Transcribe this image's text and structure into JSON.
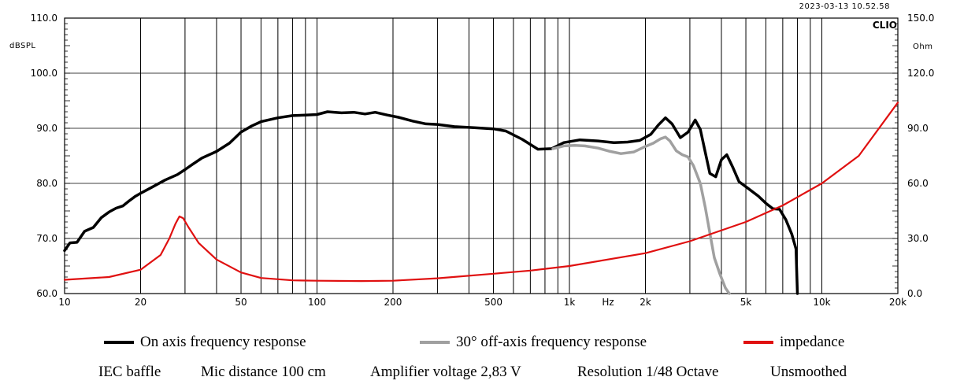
{
  "header": {
    "timestamp": "2023-03-13 10.52.58",
    "brand": "CLIO"
  },
  "chart_data": {
    "type": "line",
    "x_scale": "log",
    "xlim": [
      10,
      20000
    ],
    "x_ticks": [
      {
        "v": 10,
        "label": "10"
      },
      {
        "v": 20,
        "label": "20"
      },
      {
        "v": 50,
        "label": "50"
      },
      {
        "v": 100,
        "label": "100"
      },
      {
        "v": 200,
        "label": "200"
      },
      {
        "v": 500,
        "label": "500"
      },
      {
        "v": 1000,
        "label": "1k"
      },
      {
        "v": 2000,
        "label": "2k"
      },
      {
        "v": 5000,
        "label": "5k"
      },
      {
        "v": 10000,
        "label": "10k"
      },
      {
        "v": 20000,
        "label": "20k"
      }
    ],
    "x_unit": "Hz",
    "left_axis": {
      "unit": "dBSPL",
      "ylim": [
        60,
        110
      ],
      "ticks": [
        {
          "v": 60,
          "label": "60.0"
        },
        {
          "v": 70,
          "label": "70.0"
        },
        {
          "v": 80,
          "label": "80.0"
        },
        {
          "v": 90,
          "label": "90.0"
        },
        {
          "v": 100,
          "label": "100.0"
        },
        {
          "v": 110,
          "label": "110.0"
        }
      ]
    },
    "right_axis": {
      "unit": "Ohm",
      "ylim": [
        0,
        150
      ],
      "ticks": [
        {
          "v": 0,
          "label": "0.0"
        },
        {
          "v": 30,
          "label": "30.0"
        },
        {
          "v": 60,
          "label": "60.0"
        },
        {
          "v": 90,
          "label": "90.0"
        },
        {
          "v": 120,
          "label": "120.0"
        },
        {
          "v": 150,
          "label": "150.0"
        }
      ]
    },
    "series": [
      {
        "name": "On axis frequency response",
        "axis": "left",
        "color": "#000000",
        "width": 3.5,
        "points": [
          [
            10,
            67.8
          ],
          [
            10.5,
            69.2
          ],
          [
            11.2,
            69.3
          ],
          [
            12,
            71.3
          ],
          [
            13,
            72.0
          ],
          [
            14,
            73.8
          ],
          [
            15,
            74.8
          ],
          [
            16,
            75.5
          ],
          [
            17,
            75.9
          ],
          [
            18,
            76.8
          ],
          [
            19,
            77.6
          ],
          [
            20,
            78.2
          ],
          [
            22,
            79.2
          ],
          [
            25,
            80.6
          ],
          [
            28,
            81.6
          ],
          [
            30,
            82.5
          ],
          [
            32,
            83.4
          ],
          [
            35,
            84.6
          ],
          [
            40,
            85.8
          ],
          [
            45,
            87.3
          ],
          [
            50,
            89.3
          ],
          [
            55,
            90.4
          ],
          [
            60,
            91.2
          ],
          [
            70,
            91.9
          ],
          [
            80,
            92.3
          ],
          [
            90,
            92.4
          ],
          [
            100,
            92.5
          ],
          [
            110,
            93.0
          ],
          [
            125,
            92.8
          ],
          [
            140,
            92.9
          ],
          [
            155,
            92.6
          ],
          [
            170,
            92.9
          ],
          [
            190,
            92.4
          ],
          [
            210,
            92.0
          ],
          [
            240,
            91.3
          ],
          [
            270,
            90.8
          ],
          [
            300,
            90.7
          ],
          [
            350,
            90.3
          ],
          [
            420,
            90.1
          ],
          [
            500,
            89.9
          ],
          [
            560,
            89.5
          ],
          [
            650,
            88.0
          ],
          [
            750,
            86.2
          ],
          [
            850,
            86.3
          ],
          [
            950,
            87.4
          ],
          [
            1100,
            87.9
          ],
          [
            1300,
            87.7
          ],
          [
            1500,
            87.4
          ],
          [
            1700,
            87.5
          ],
          [
            1900,
            87.8
          ],
          [
            2100,
            88.9
          ],
          [
            2250,
            90.6
          ],
          [
            2400,
            91.9
          ],
          [
            2550,
            90.8
          ],
          [
            2750,
            88.3
          ],
          [
            2950,
            89.3
          ],
          [
            3150,
            91.5
          ],
          [
            3300,
            89.8
          ],
          [
            3450,
            85.7
          ],
          [
            3600,
            81.8
          ],
          [
            3800,
            81.2
          ],
          [
            4000,
            84.3
          ],
          [
            4200,
            85.2
          ],
          [
            4450,
            82.8
          ],
          [
            4700,
            80.3
          ],
          [
            5100,
            79.1
          ],
          [
            5600,
            77.7
          ],
          [
            6000,
            76.4
          ],
          [
            6400,
            75.4
          ],
          [
            6800,
            75.3
          ],
          [
            7200,
            73.4
          ],
          [
            7600,
            70.8
          ],
          [
            7900,
            68.1
          ],
          [
            8000,
            60.0
          ]
        ]
      },
      {
        "name": "30° off-axis frequency response",
        "axis": "left",
        "color": "#a0a0a0",
        "width": 3.5,
        "points": [
          [
            860,
            86.3
          ],
          [
            950,
            86.8
          ],
          [
            1050,
            86.9
          ],
          [
            1150,
            86.8
          ],
          [
            1300,
            86.4
          ],
          [
            1450,
            85.8
          ],
          [
            1600,
            85.4
          ],
          [
            1800,
            85.7
          ],
          [
            2000,
            86.7
          ],
          [
            2150,
            87.3
          ],
          [
            2300,
            88.1
          ],
          [
            2400,
            88.4
          ],
          [
            2500,
            87.7
          ],
          [
            2650,
            85.9
          ],
          [
            2800,
            85.2
          ],
          [
            2950,
            84.8
          ],
          [
            3100,
            83.2
          ],
          [
            3300,
            80.0
          ],
          [
            3450,
            75.7
          ],
          [
            3600,
            71.0
          ],
          [
            3750,
            66.5
          ],
          [
            3950,
            63.5
          ],
          [
            4150,
            61.0
          ],
          [
            4300,
            60.0
          ]
        ]
      },
      {
        "name": "impedance",
        "axis": "right",
        "color": "#e01010",
        "width": 2.2,
        "points": [
          [
            10,
            7.5
          ],
          [
            15,
            9.0
          ],
          [
            20,
            13.0
          ],
          [
            24,
            21.0
          ],
          [
            26,
            30.0
          ],
          [
            27.5,
            38.0
          ],
          [
            28.5,
            42.0
          ],
          [
            29.5,
            41.0
          ],
          [
            31,
            36.0
          ],
          [
            34,
            27.5
          ],
          [
            40,
            18.5
          ],
          [
            50,
            11.5
          ],
          [
            60,
            8.5
          ],
          [
            80,
            7.2
          ],
          [
            100,
            7.0
          ],
          [
            150,
            6.8
          ],
          [
            200,
            7.0
          ],
          [
            300,
            8.3
          ],
          [
            500,
            10.8
          ],
          [
            700,
            12.5
          ],
          [
            1000,
            15.0
          ],
          [
            2000,
            22.0
          ],
          [
            3000,
            28.5
          ],
          [
            5000,
            39.0
          ],
          [
            7000,
            48.0
          ],
          [
            10000,
            60.0
          ],
          [
            14000,
            75.0
          ],
          [
            20000,
            104.0
          ]
        ]
      }
    ]
  },
  "legend": {
    "on_axis": {
      "label": "On axis frequency response",
      "color": "#000000"
    },
    "off_axis": {
      "label": "30° off-axis frequency response",
      "color": "#a0a0a0"
    },
    "impedance": {
      "label": "impedance",
      "color": "#e01010"
    }
  },
  "meta": {
    "baffle": "IEC baffle",
    "mic_distance": "Mic distance 100 cm",
    "amplifier_voltage": "Amplifier voltage 2,83 V",
    "resolution": "Resolution 1/48 Octave",
    "smoothing": "Unsmoothed"
  }
}
